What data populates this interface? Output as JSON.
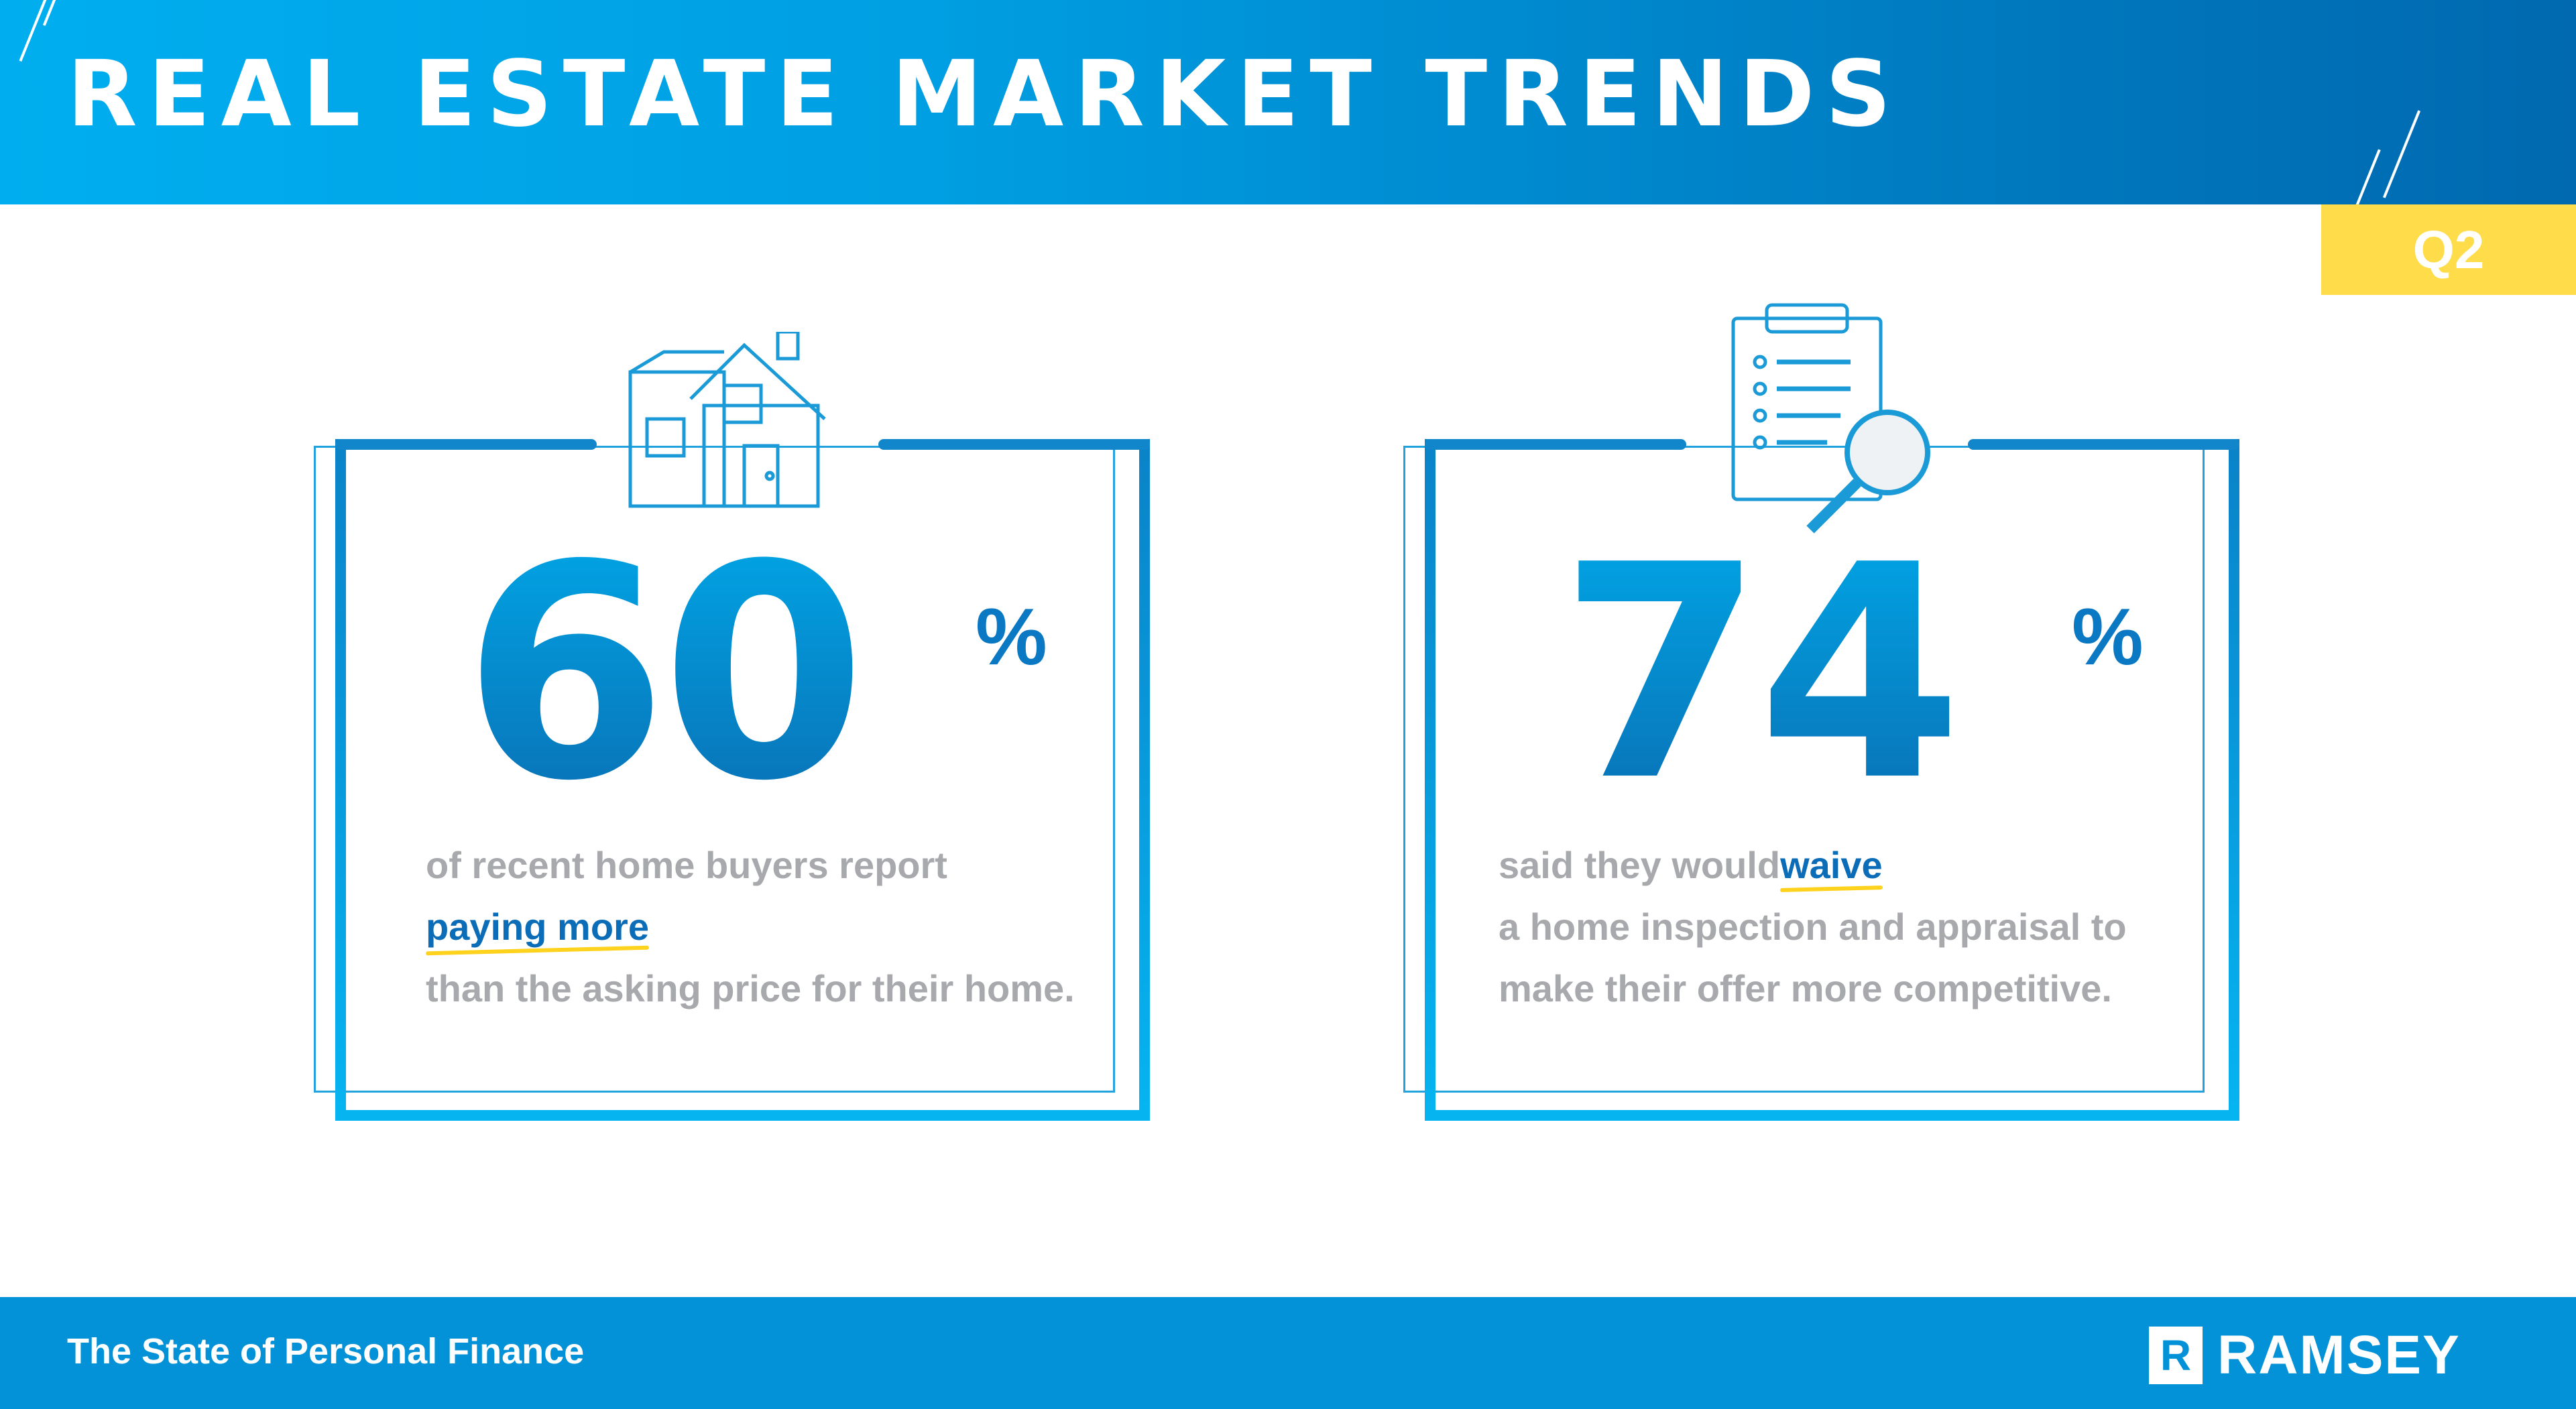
{
  "header": {
    "title": "REAL ESTATE MARKET TRENDS",
    "quarter": "Q2"
  },
  "cards": [
    {
      "icon": "house-icon",
      "value": "60",
      "unit": "%",
      "text_before": "of recent home buyers report ",
      "highlight": "paying more",
      "text_after": " than the asking price for their home."
    },
    {
      "icon": "clipboard-magnifier-icon",
      "value": "74",
      "unit": "%",
      "text_before": "said they would ",
      "highlight": "waive",
      "text_after": " a home inspection and appraisal to make their offer more competitive."
    }
  ],
  "footer": {
    "text": "The State of Personal Finance",
    "logo_mark": "R",
    "logo_text": "RAMSEY"
  },
  "colors": {
    "header_start": "#00aeef",
    "header_end": "#0069b0",
    "accent_yellow": "#ffdc4a",
    "footer": "#0392d7",
    "number": "#0a78c2",
    "body_text": "#a7a9ac"
  }
}
